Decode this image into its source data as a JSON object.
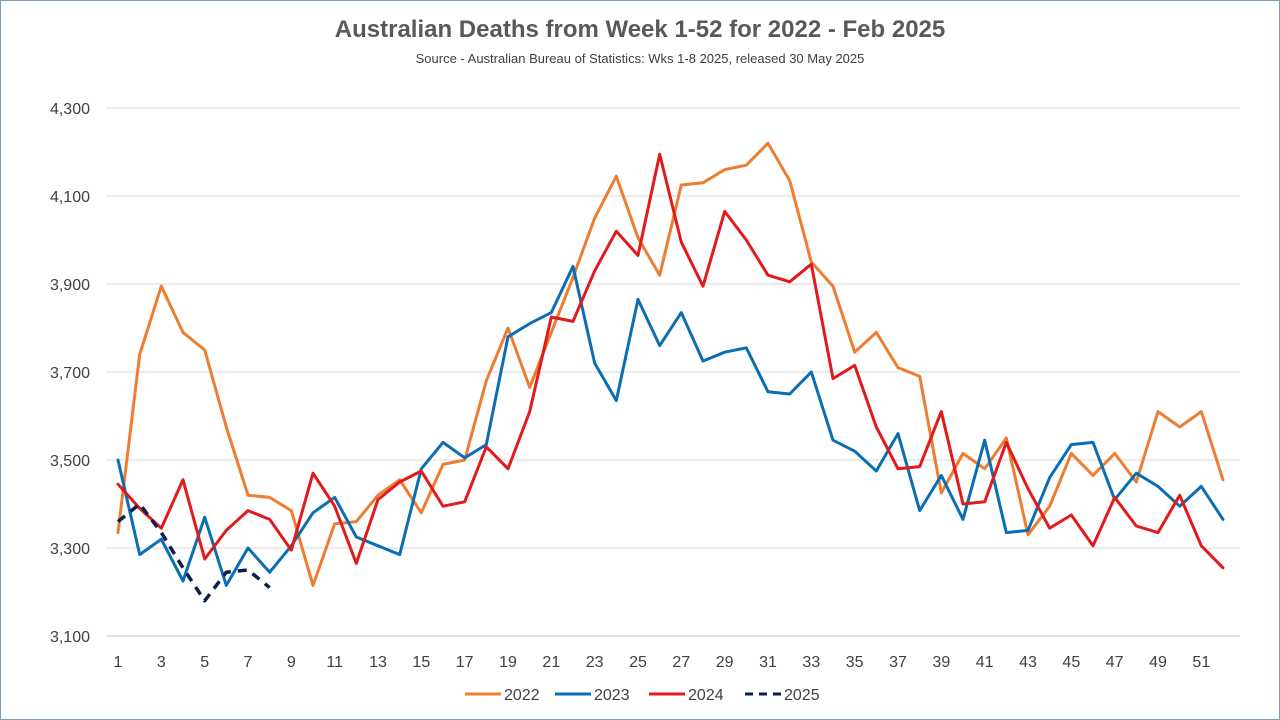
{
  "chart_data": {
    "type": "line",
    "title": "Australian Deaths from Week 1-52 for 2022 - Feb 2025",
    "subtitle": "Source  - Australian Bureau  of Statistics: Wks 1-8 2025, released 30 May 2025",
    "xlabel": "",
    "ylabel": "",
    "ylim": [
      3100,
      4300
    ],
    "yticks": [
      3100,
      3300,
      3500,
      3700,
      3900,
      4100,
      4300
    ],
    "ytick_labels": [
      "3,100",
      "3,300",
      "3,500",
      "3,700",
      "3,900",
      "4,100",
      "4,300"
    ],
    "xlim": [
      1,
      52
    ],
    "xticks": [
      1,
      3,
      5,
      7,
      9,
      11,
      13,
      15,
      17,
      19,
      21,
      23,
      25,
      27,
      29,
      31,
      33,
      35,
      37,
      39,
      41,
      43,
      45,
      47,
      49,
      51
    ],
    "grid": "horizontal",
    "legend_position": "bottom",
    "series": [
      {
        "name": "2022",
        "color": "#ed7d31",
        "dash": "solid",
        "x": [
          1,
          2,
          3,
          4,
          5,
          6,
          7,
          8,
          9,
          10,
          11,
          12,
          13,
          14,
          15,
          16,
          17,
          18,
          19,
          20,
          21,
          22,
          23,
          24,
          25,
          26,
          27,
          28,
          29,
          30,
          31,
          32,
          33,
          34,
          35,
          36,
          37,
          38,
          39,
          40,
          41,
          42,
          43,
          44,
          45,
          46,
          47,
          48,
          49,
          50,
          51,
          52
        ],
        "values": [
          3335,
          3740,
          3895,
          3790,
          3750,
          3575,
          3420,
          3415,
          3385,
          3215,
          3355,
          3360,
          3420,
          3455,
          3380,
          3490,
          3500,
          3680,
          3800,
          3665,
          3790,
          3915,
          4050,
          4145,
          4005,
          3920,
          4125,
          4130,
          4160,
          4170,
          4220,
          4135,
          3950,
          3895,
          3745,
          3790,
          3710,
          3690,
          3425,
          3515,
          3480,
          3550,
          3330,
          3395,
          3515,
          3465,
          3515,
          3450,
          3610,
          3575,
          3610,
          3455
        ]
      },
      {
        "name": "2023",
        "color": "#0a6eb4",
        "dash": "solid",
        "x": [
          1,
          2,
          3,
          4,
          5,
          6,
          7,
          8,
          9,
          10,
          11,
          12,
          13,
          14,
          15,
          16,
          17,
          18,
          19,
          20,
          21,
          22,
          23,
          24,
          25,
          26,
          27,
          28,
          29,
          30,
          31,
          32,
          33,
          34,
          35,
          36,
          37,
          38,
          39,
          40,
          41,
          42,
          43,
          44,
          45,
          46,
          47,
          48,
          49,
          50,
          51,
          52
        ],
        "values": [
          3500,
          3285,
          3320,
          3225,
          3370,
          3215,
          3300,
          3245,
          3305,
          3380,
          3415,
          3325,
          3305,
          3285,
          3480,
          3540,
          3505,
          3535,
          3780,
          3810,
          3835,
          3940,
          3720,
          3635,
          3865,
          3760,
          3835,
          3725,
          3745,
          3755,
          3655,
          3650,
          3700,
          3545,
          3520,
          3475,
          3560,
          3385,
          3465,
          3365,
          3545,
          3335,
          3340,
          3460,
          3535,
          3540,
          3410,
          3470,
          3440,
          3395,
          3440,
          3365
        ]
      },
      {
        "name": "2024",
        "color": "#e31a1c",
        "dash": "solid",
        "x": [
          1,
          2,
          3,
          4,
          5,
          6,
          7,
          8,
          9,
          10,
          11,
          12,
          13,
          14,
          15,
          16,
          17,
          18,
          19,
          20,
          21,
          22,
          23,
          24,
          25,
          26,
          27,
          28,
          29,
          30,
          31,
          32,
          33,
          34,
          35,
          36,
          37,
          38,
          39,
          40,
          41,
          42,
          43,
          44,
          45,
          46,
          47,
          48,
          49,
          50,
          51,
          52
        ],
        "values": [
          3445,
          3390,
          3345,
          3455,
          3275,
          3340,
          3385,
          3365,
          3295,
          3470,
          3395,
          3265,
          3410,
          3450,
          3475,
          3395,
          3405,
          3530,
          3480,
          3610,
          3825,
          3815,
          3930,
          4020,
          3965,
          4195,
          3995,
          3895,
          4065,
          4000,
          3920,
          3905,
          3945,
          3685,
          3715,
          3575,
          3480,
          3485,
          3610,
          3400,
          3405,
          3540,
          3435,
          3345,
          3375,
          3305,
          3415,
          3350,
          3335,
          3420,
          3305,
          3255
        ]
      },
      {
        "name": "2025",
        "color": "#0b1f4f",
        "dash": "dashed",
        "x": [
          1,
          2,
          3,
          4,
          5,
          6,
          7,
          8
        ],
        "values": [
          3360,
          3400,
          3335,
          3255,
          3180,
          3245,
          3250,
          3210
        ]
      }
    ]
  }
}
